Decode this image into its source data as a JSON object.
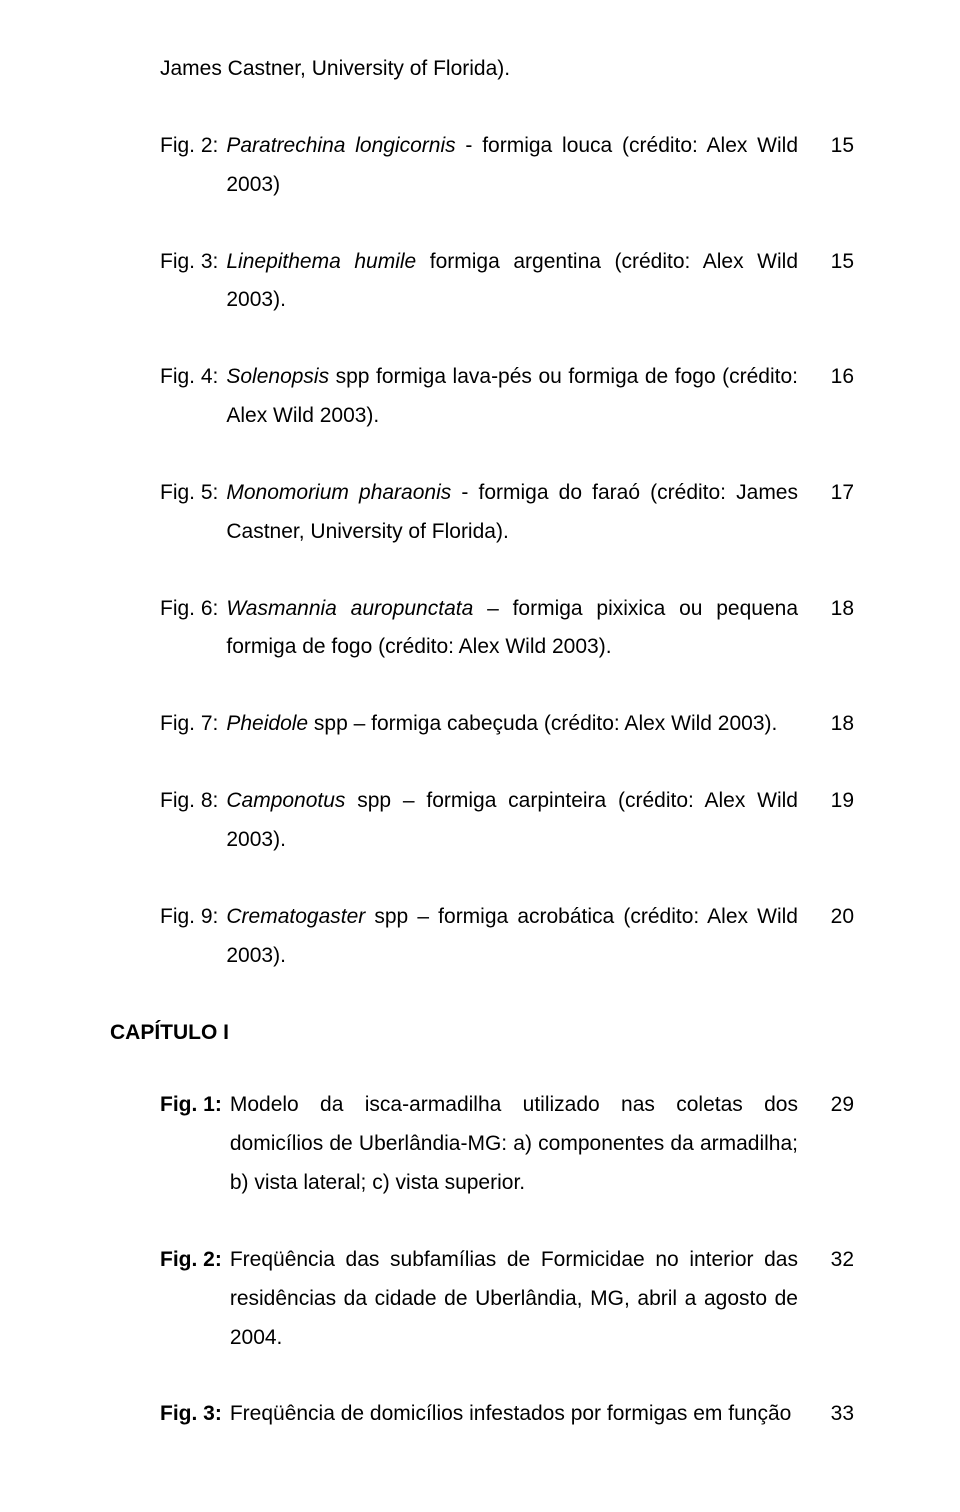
{
  "cont_line": "James Castner, University of Florida).",
  "entries": [
    {
      "label": "Fig. 2:",
      "text_html": "<span class='italic'>Paratrechina longicornis</span> - formiga louca (crédito: Alex Wild 2003)",
      "page": "15"
    },
    {
      "label": "Fig. 3:",
      "text_html": "<span class='italic'>Linepithema humile</span> formiga argentina (crédito: Alex Wild 2003).",
      "page": "15"
    },
    {
      "label": "Fig. 4:",
      "text_html": "<span class='italic'>Solenopsis</span> spp formiga lava-pés ou formiga de fogo (crédito: Alex Wild 2003).",
      "page": "16"
    },
    {
      "label": "Fig. 5:",
      "text_html": "<span class='italic'>Monomorium pharaonis</span> - formiga do faraó (crédito: James Castner, University of Florida).",
      "page": "17"
    },
    {
      "label": "Fig. 6:",
      "text_html": "<span class='italic'>Wasmannia auropunctata</span> – formiga pixixica ou pequena formiga de fogo (crédito: Alex Wild 2003).",
      "page": "18"
    },
    {
      "label": "Fig. 7:",
      "text_html": "<span class='italic'>Pheidole</span> spp – formiga cabeçuda (crédito: Alex Wild 2003).",
      "page": "18"
    },
    {
      "label": "Fig. 8:",
      "text_html": "<span class='italic'>Camponotus</span> spp – formiga carpinteira (crédito: Alex Wild 2003).",
      "page": "19"
    },
    {
      "label": "Fig. 9:",
      "text_html": "<span class='italic'>Crematogaster</span> spp – formiga acrobática (crédito: Alex Wild 2003).",
      "page": "20"
    }
  ],
  "chapter_label": "CAPÍTULO I",
  "chapter_entries": [
    {
      "label": "Fig. 1:",
      "text_html": "Modelo da isca-armadilha utilizado nas coletas dos domicílios de Uberlândia-MG: a) componentes da armadilha; b) vista lateral; c) vista superior.",
      "page": "29"
    },
    {
      "label": "Fig. 2:",
      "text_html": "Freqüência das subfamílias de Formicidae no interior das residências da cidade de Uberlândia, MG, abril a agosto de 2004.",
      "page": "32"
    },
    {
      "label": "Fig. 3:",
      "text_html": "Freqüência de domicílios infestados por formigas em função",
      "page": "33"
    }
  ]
}
